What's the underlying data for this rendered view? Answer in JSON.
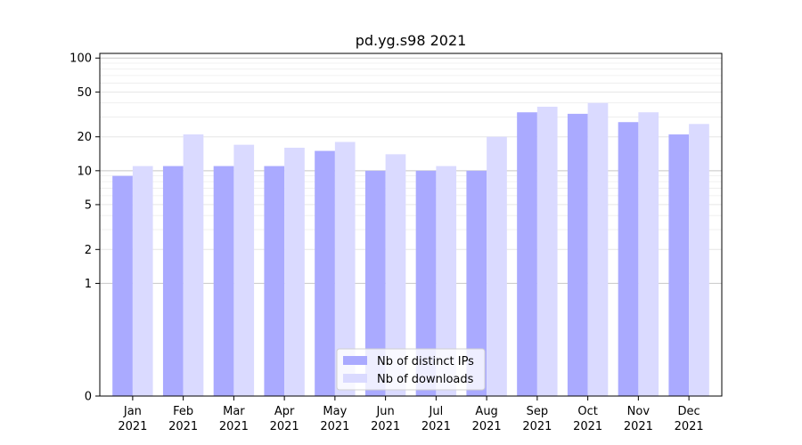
{
  "chart_data": {
    "type": "bar",
    "title": "pd.yg.s98 2021",
    "xlabel": "",
    "ylabel": "",
    "categories": [
      [
        "Jan",
        "2021"
      ],
      [
        "Feb",
        "2021"
      ],
      [
        "Mar",
        "2021"
      ],
      [
        "Apr",
        "2021"
      ],
      [
        "May",
        "2021"
      ],
      [
        "Jun",
        "2021"
      ],
      [
        "Jul",
        "2021"
      ],
      [
        "Aug",
        "2021"
      ],
      [
        "Sep",
        "2021"
      ],
      [
        "Oct",
        "2021"
      ],
      [
        "Nov",
        "2021"
      ],
      [
        "Dec",
        "2021"
      ]
    ],
    "series": [
      {
        "name": "Nb of distinct IPs",
        "color": "#aaaaff",
        "values": [
          9,
          11,
          11,
          11,
          15,
          10,
          10,
          10,
          33,
          32,
          27,
          21
        ]
      },
      {
        "name": "Nb of downloads",
        "color": "#dadaff",
        "values": [
          11,
          21,
          17,
          16,
          18,
          14,
          11,
          20,
          37,
          40,
          33,
          26
        ]
      }
    ],
    "y_scale": "symlog",
    "y_ticks": [
      "0",
      "1",
      "2",
      "5",
      "10",
      "20",
      "50",
      "100"
    ],
    "ylim": [
      0,
      110
    ],
    "grid": true,
    "legend_placement": "lower-center"
  }
}
